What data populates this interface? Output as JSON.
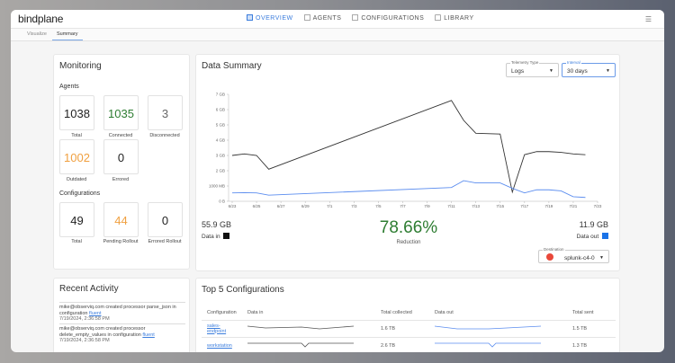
{
  "app": {
    "logo": "bindplane",
    "menu_icon": "hamburger-icon"
  },
  "nav": [
    {
      "label": "OVERVIEW",
      "icon": "overview-icon",
      "active": true
    },
    {
      "label": "AGENTS",
      "icon": "agents-icon"
    },
    {
      "label": "CONFIGURATIONS",
      "icon": "configurations-icon"
    },
    {
      "label": "LIBRARY",
      "icon": "bookmark-icon"
    }
  ],
  "subtabs": [
    {
      "label": "Visualize"
    },
    {
      "label": "Summary",
      "active": true
    }
  ],
  "monitoring": {
    "title": "Monitoring",
    "agents_label": "Agents",
    "agents": [
      {
        "value": "1038",
        "label": "Total"
      },
      {
        "value": "1035",
        "label": "Connected"
      },
      {
        "value": "3",
        "label": "Disconnected"
      },
      {
        "value": "1002",
        "label": "Outdated"
      },
      {
        "value": "0",
        "label": "Errored"
      }
    ],
    "configs_label": "Configurations",
    "configs": [
      {
        "value": "49",
        "label": "Total"
      },
      {
        "value": "44",
        "label": "Pending Rollout"
      },
      {
        "value": "0",
        "label": "Errored Rollout"
      }
    ]
  },
  "summary": {
    "title": "Data Summary",
    "telemetry": {
      "label": "Telemetry Type",
      "value": "Logs"
    },
    "interval": {
      "label": "Interval",
      "value": "30 days"
    },
    "data_in": {
      "value": "55.9 GB",
      "label": "Data in"
    },
    "reduction": {
      "value": "78.66%",
      "label": "Reduction"
    },
    "data_out": {
      "value": "11.9 GB",
      "label": "Data out"
    },
    "destination": {
      "label": "Destination",
      "value": "splunk-c4-0"
    }
  },
  "chart_data": {
    "type": "line",
    "x": [
      "6/23",
      "6/24",
      "6/25",
      "6/26",
      "7/11",
      "7/12",
      "7/13",
      "7/15",
      "7/16",
      "7/17",
      "7/18",
      "7/19",
      "7/20",
      "7/21",
      "7/22"
    ],
    "x_day_index": [
      0,
      1,
      2,
      3,
      18,
      19,
      20,
      22,
      23,
      24,
      25,
      26,
      27,
      28,
      29
    ],
    "x_ticks": [
      "6/23",
      "6/25",
      "6/27",
      "6/29",
      "7/1",
      "7/3",
      "7/5",
      "7/7",
      "7/9",
      "7/11",
      "7/13",
      "7/15",
      "7/17",
      "7/19",
      "7/21",
      "7/23"
    ],
    "y_ticks": [
      "0 B",
      "1000 MB",
      "2 GB",
      "3 GB",
      "4 GB",
      "5 GB",
      "6 GB",
      "7 GB"
    ],
    "ylim": [
      0,
      7
    ],
    "ylabel": "GB",
    "series": [
      {
        "name": "Data in",
        "color": "#333333",
        "values": [
          3.0,
          3.1,
          3.0,
          2.1,
          6.6,
          5.3,
          4.45,
          4.4,
          0.6,
          3.05,
          3.25,
          3.25,
          3.2,
          3.1,
          3.05
        ]
      },
      {
        "name": "Data out",
        "color": "#5b8def",
        "values": [
          0.55,
          0.56,
          0.55,
          0.4,
          0.9,
          1.35,
          1.2,
          1.2,
          0.85,
          0.55,
          0.75,
          0.75,
          0.68,
          0.3,
          0.25
        ]
      }
    ]
  },
  "activity": {
    "title": "Recent Activity",
    "items": [
      {
        "text": "mike@observiq.com created processor parse_json in configuration ",
        "link": "fluent",
        "time": "7/19/2024, 2:36:58 PM"
      },
      {
        "text": "mike@observiq.com created processor delete_empty_values in configuration ",
        "link": "fluent",
        "time": "7/19/2024, 2:36:58 PM"
      }
    ]
  },
  "top5": {
    "title": "Top 5 Configurations",
    "headers": [
      "Configuration",
      "Data in",
      "Total collected",
      "Data out",
      "Total sent"
    ],
    "rows": [
      {
        "name": "sales-endpoint",
        "collected": "1.6 TB",
        "sent": "1.5 TB"
      },
      {
        "name": "workstation",
        "collected": "2.6 TB",
        "sent": "1.3 TB"
      }
    ]
  }
}
